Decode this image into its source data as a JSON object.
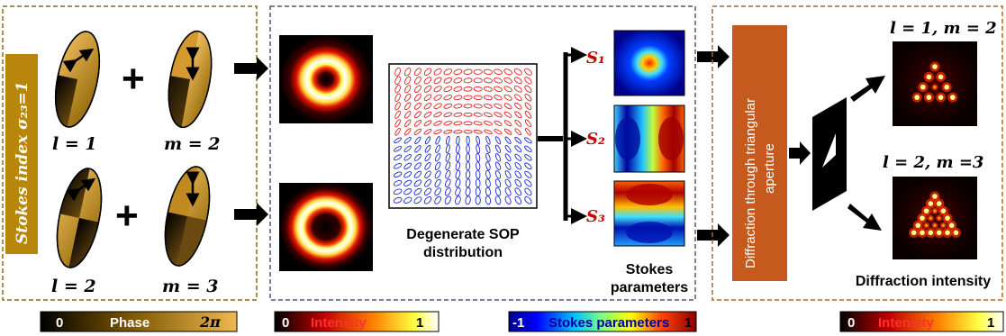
{
  "panel1": {
    "stokes_index": "Stokes index σ₂₃=1",
    "labels": [
      "l = 1",
      "m = 2",
      "l = 2",
      "m = 3"
    ],
    "plus": "+"
  },
  "panel2": {
    "sop_caption_line1": "Degenerate SOP",
    "sop_caption_line2": "distribution",
    "stokes_labels": [
      "S₁",
      "S₂",
      "S₃"
    ],
    "stokes_caption_line1": "Stokes",
    "stokes_caption_line2": "parameters"
  },
  "panel3": {
    "aperture_box_line1": "Diffraction through triangular",
    "aperture_box_line2": "aperture",
    "top_label": "l = 1, m = 2",
    "bottom_label": "l = 2, m =3",
    "caption": "Diffraction intensity"
  },
  "colorbars": {
    "phase": {
      "min": "0",
      "title": "Phase",
      "max": "2π"
    },
    "intensity1": {
      "min": "0",
      "title": "Intensity",
      "max": "1"
    },
    "stokes": {
      "min": "-1",
      "title": "Stokes parameters",
      "max": "1"
    },
    "intensity2": {
      "min": "0",
      "title": "Intensity",
      "max": "1"
    }
  },
  "colors": {
    "panel1_border": "#8B6914",
    "panel2_border": "#4a5a7a",
    "panel3_border": "#b5651d",
    "stokes_box": "#b8860b",
    "aperture_box": "#c65a1e",
    "label_red": "#cc0000"
  }
}
